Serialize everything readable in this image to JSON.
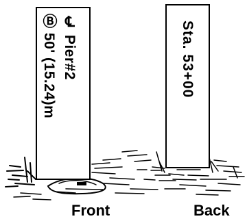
{
  "front_stake": {
    "line1": "℄ Pier#2",
    "line2": "Ⓑ 50' (15.24)m"
  },
  "back_stake": {
    "line1": "Sta. 53+00"
  },
  "captions": {
    "front": "Front",
    "back": "Back"
  },
  "colors": {
    "ink": "#000000",
    "background": "#ffffff"
  }
}
